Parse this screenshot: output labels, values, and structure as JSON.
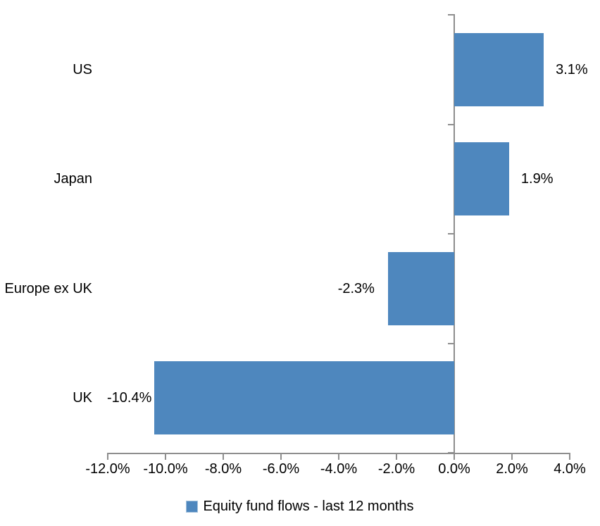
{
  "chart_data": {
    "type": "bar",
    "orientation": "horizontal",
    "title": "",
    "categories": [
      "US",
      "Japan",
      "Europe ex UK",
      "UK"
    ],
    "values": [
      3.1,
      1.9,
      -2.3,
      -10.4
    ],
    "data_labels": [
      "3.1%",
      "1.9%",
      "-2.3%",
      "-10.4%"
    ],
    "series": [
      {
        "name": "Equity fund flows - last 12 months",
        "values": [
          3.1,
          1.9,
          -2.3,
          -10.4
        ]
      }
    ],
    "xlabel": "",
    "ylabel": "",
    "xlim": [
      -12,
      4
    ],
    "x_ticks": [
      {
        "value": -12,
        "label": "-12.0%"
      },
      {
        "value": -10,
        "label": "-10.0%"
      },
      {
        "value": -8,
        "label": "-8.0%"
      },
      {
        "value": -6,
        "label": "-6.0%"
      },
      {
        "value": -4,
        "label": "-4.0%"
      },
      {
        "value": -2,
        "label": "-2.0%"
      },
      {
        "value": 0,
        "label": "0.0%"
      },
      {
        "value": 2,
        "label": "2.0%"
      },
      {
        "value": 4,
        "label": "4.0%"
      }
    ],
    "grid": false,
    "legend": {
      "position": "bottom",
      "label": "Equity fund flows - last 12 months"
    },
    "colors": {
      "bar": "#4E87BE",
      "axis": "#8E8E8E",
      "text": "#000000",
      "background": "#FFFFFF",
      "legend_marker_border": "#A3C1DC"
    }
  }
}
